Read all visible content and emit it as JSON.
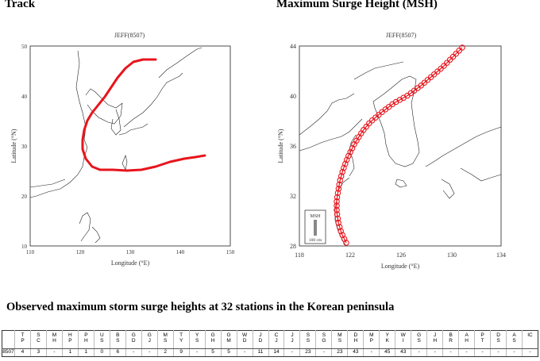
{
  "titles": {
    "track": "Track",
    "msh": "Maximum Surge Height (MSH)",
    "observed": "Observed maximum storm surge heights at 32 stations in the Korean peninsula"
  },
  "track_map": {
    "title": "JEFF(8507)",
    "x_ticks": [
      "110",
      "120",
      "130",
      "140",
      "150"
    ],
    "y_ticks": [
      "10",
      "20",
      "30",
      "40",
      "50"
    ],
    "x_label": "Longitude (°E)",
    "y_label": "Latitude (°N)",
    "track_color": "#e8141c"
  },
  "msh_map": {
    "title": "JEFF(8507)",
    "x_ticks": [
      "118",
      "122",
      "126",
      "130",
      "134"
    ],
    "y_ticks": [
      "28",
      "32",
      "36",
      "40",
      "44"
    ],
    "x_label": "Longitude (°E)",
    "y_label": "Latitude (°N)",
    "legend_title": "MSH",
    "legend_scale": "100 cm",
    "marker_color": "#e8141c"
  },
  "table": {
    "columns": [
      {
        "top": "T",
        "bottom": "P"
      },
      {
        "top": "S",
        "bottom": "C"
      },
      {
        "top": "M",
        "bottom": "H"
      },
      {
        "top": "H",
        "bottom": "P"
      },
      {
        "top": "P",
        "bottom": "H"
      },
      {
        "top": "U",
        "bottom": "S"
      },
      {
        "top": "B",
        "bottom": "S"
      },
      {
        "top": "G",
        "bottom": "D"
      },
      {
        "top": "G",
        "bottom": "J"
      },
      {
        "top": "M",
        "bottom": "S"
      },
      {
        "top": "T",
        "bottom": "Y"
      },
      {
        "top": "Y",
        "bottom": "S"
      },
      {
        "top": "G",
        "bottom": "H"
      },
      {
        "top": "G",
        "bottom": "M"
      },
      {
        "top": "W",
        "bottom": "D"
      },
      {
        "top": "J",
        "bottom": "D"
      },
      {
        "top": "C",
        "bottom": "J"
      },
      {
        "top": "J",
        "bottom": "J"
      },
      {
        "top": "S",
        "bottom": "S"
      },
      {
        "top": "S",
        "bottom": "G"
      },
      {
        "top": "M",
        "bottom": "S"
      },
      {
        "top": "D",
        "bottom": "H"
      },
      {
        "top": "M",
        "bottom": "P"
      },
      {
        "top": "Y",
        "bottom": "K"
      },
      {
        "top": "W",
        "bottom": "I"
      },
      {
        "top": "G",
        "bottom": "S"
      },
      {
        "top": "J",
        "bottom": "H"
      },
      {
        "top": "B",
        "bottom": "R"
      },
      {
        "top": "A",
        "bottom": "H"
      },
      {
        "top": "P",
        "bottom": "T"
      },
      {
        "top": "D",
        "bottom": "S"
      },
      {
        "top": "A",
        "bottom": "S"
      },
      {
        "top": "IC",
        "bottom": ""
      }
    ],
    "row": {
      "id": "8507",
      "values": [
        "4",
        "3",
        "-",
        "1",
        "1",
        "0",
        "6",
        "-",
        "-",
        "2",
        "9",
        "-",
        "5",
        "5",
        "-",
        "11",
        "14",
        "-",
        "23",
        "-",
        "23",
        "43",
        "-",
        "45",
        "43",
        "-",
        "-",
        "-",
        "-",
        "-",
        "-",
        "-",
        "-"
      ]
    }
  }
}
